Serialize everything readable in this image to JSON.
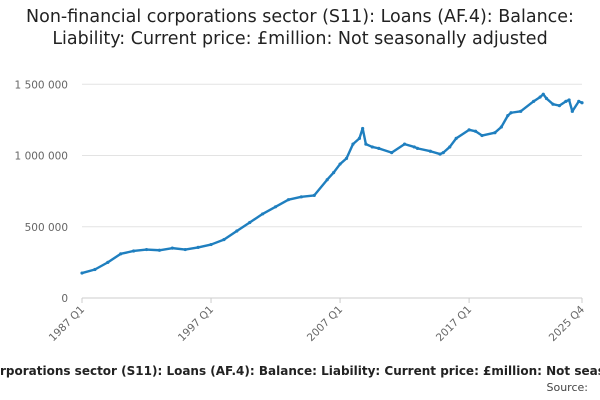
{
  "chart_data": {
    "type": "line",
    "title": "Non-financial corporations sector (S11): Loans (AF.4): Balance: Liability: Current price: £million: Not seasonally adjusted",
    "xlabel": "",
    "ylabel": "",
    "y_ticks": [
      0,
      500000,
      1000000,
      1500000
    ],
    "y_tick_labels": [
      "0",
      "500 000",
      "1 000 000",
      "1 500 000"
    ],
    "ylim": [
      0,
      1600000
    ],
    "x_tick_labels": [
      "1987 Q1",
      "1997 Q1",
      "2007 Q1",
      "2017 Q1",
      "2025 Q4"
    ],
    "x_tick_years": [
      1987.0,
      1997.0,
      2007.0,
      2017.0,
      2025.75
    ],
    "grid": "horizontal",
    "color": "#1f7fbf",
    "series": [
      {
        "name": "Non-financial corporations sector (S11): Loans (AF.4): Balance: Liability: Current price: £million: Not seasonally adjusted",
        "x": [
          1987.0,
          1988.0,
          1989.0,
          1990.0,
          1991.0,
          1992.0,
          1993.0,
          1994.0,
          1995.0,
          1996.0,
          1997.0,
          1998.0,
          1999.0,
          2000.0,
          2001.0,
          2002.0,
          2003.0,
          2004.0,
          2005.0,
          2006.0,
          2006.5,
          2007.0,
          2007.5,
          2008.0,
          2008.5,
          2008.75,
          2009.0,
          2009.5,
          2010.0,
          2011.0,
          2012.0,
          2012.75,
          2013.0,
          2014.0,
          2014.75,
          2015.0,
          2015.5,
          2016.0,
          2017.0,
          2017.5,
          2018.0,
          2019.0,
          2019.5,
          2020.0,
          2020.25,
          2021.0,
          2022.0,
          2022.5,
          2022.75,
          2023.0,
          2023.5,
          2024.0,
          2024.5,
          2024.75,
          2025.0,
          2025.5,
          2025.75
        ],
        "y": [
          175000,
          200000,
          250000,
          310000,
          330000,
          340000,
          335000,
          350000,
          340000,
          355000,
          375000,
          410000,
          470000,
          530000,
          590000,
          640000,
          690000,
          710000,
          720000,
          830000,
          880000,
          940000,
          980000,
          1080000,
          1120000,
          1190000,
          1080000,
          1060000,
          1050000,
          1020000,
          1080000,
          1060000,
          1050000,
          1030000,
          1010000,
          1020000,
          1060000,
          1120000,
          1180000,
          1170000,
          1140000,
          1160000,
          1200000,
          1280000,
          1300000,
          1310000,
          1380000,
          1410000,
          1430000,
          1400000,
          1360000,
          1350000,
          1380000,
          1390000,
          1310000,
          1380000,
          1370000
        ]
      }
    ],
    "source_label": "Source:"
  }
}
